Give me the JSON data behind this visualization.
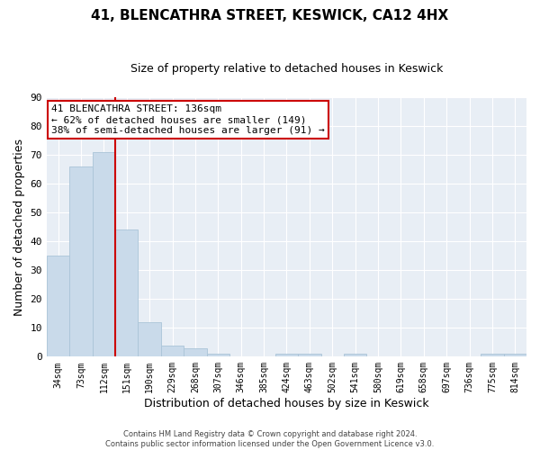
{
  "title": "41, BLENCATHRA STREET, KESWICK, CA12 4HX",
  "subtitle": "Size of property relative to detached houses in Keswick",
  "xlabel": "Distribution of detached houses by size in Keswick",
  "ylabel": "Number of detached properties",
  "bar_labels": [
    "34sqm",
    "73sqm",
    "112sqm",
    "151sqm",
    "190sqm",
    "229sqm",
    "268sqm",
    "307sqm",
    "346sqm",
    "385sqm",
    "424sqm",
    "463sqm",
    "502sqm",
    "541sqm",
    "580sqm",
    "619sqm",
    "658sqm",
    "697sqm",
    "736sqm",
    "775sqm",
    "814sqm"
  ],
  "bar_values": [
    35,
    66,
    71,
    44,
    12,
    4,
    3,
    1,
    0,
    0,
    1,
    1,
    0,
    1,
    0,
    0,
    0,
    0,
    0,
    1,
    1
  ],
  "bar_color": "#c9daea",
  "bar_edge_color": "#aac4d8",
  "vline_color": "#cc0000",
  "vline_pos": 2.5,
  "ylim": [
    0,
    90
  ],
  "yticks": [
    0,
    10,
    20,
    30,
    40,
    50,
    60,
    70,
    80,
    90
  ],
  "annotation_text": "41 BLENCATHRA STREET: 136sqm\n← 62% of detached houses are smaller (149)\n38% of semi-detached houses are larger (91) →",
  "annotation_box_facecolor": "#ffffff",
  "annotation_box_edgecolor": "#cc0000",
  "footer_line1": "Contains HM Land Registry data © Crown copyright and database right 2024.",
  "footer_line2": "Contains public sector information licensed under the Open Government Licence v3.0.",
  "fig_bg_color": "#ffffff",
  "plot_bg_color": "#e8eef5",
  "grid_color": "#ffffff",
  "title_fontsize": 11,
  "subtitle_fontsize": 9,
  "xlabel_fontsize": 9,
  "ylabel_fontsize": 9
}
